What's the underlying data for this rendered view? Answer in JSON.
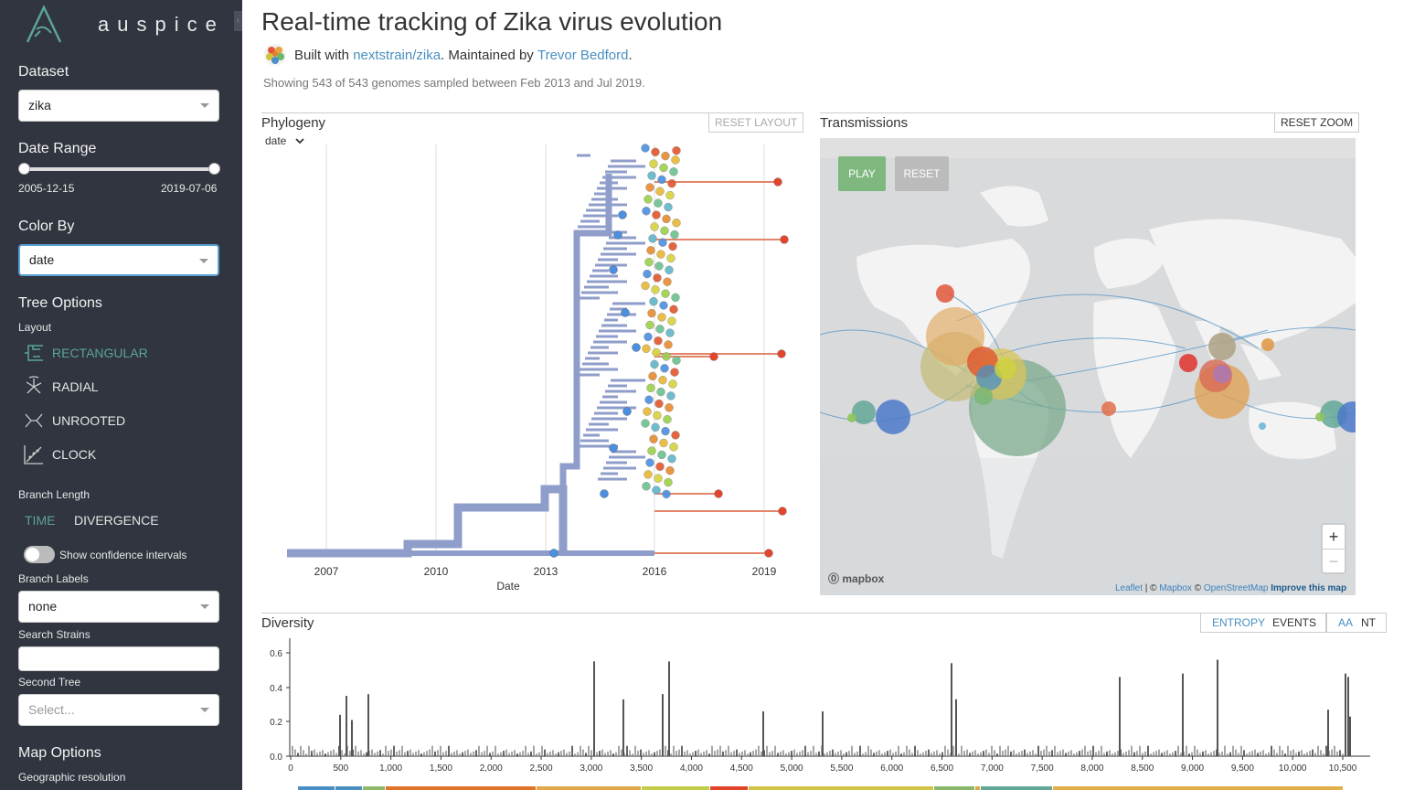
{
  "sidebar": {
    "brand": "auspice",
    "dataset": {
      "heading": "Dataset",
      "value": "zika"
    },
    "date_range": {
      "heading": "Date Range",
      "min": "2005-12-15",
      "max": "2019-07-06"
    },
    "color_by": {
      "heading": "Color By",
      "value": "date"
    },
    "tree_options": {
      "heading": "Tree Options",
      "layout_label": "Layout",
      "layouts": [
        "RECTANGULAR",
        "RADIAL",
        "UNROOTED",
        "CLOCK"
      ],
      "selected_layout": "RECTANGULAR",
      "branch_length_label": "Branch Length",
      "branch_length_options": [
        "TIME",
        "DIVERGENCE"
      ],
      "selected_branch_length": "TIME",
      "confidence_label": "Show confidence intervals",
      "branch_labels_label": "Branch Labels",
      "branch_labels_value": "none",
      "search_label": "Search Strains",
      "search_value": "",
      "second_tree_label": "Second Tree",
      "second_tree_placeholder": "Select..."
    },
    "map_options": {
      "heading": "Map Options",
      "geo_res_label": "Geographic resolution"
    }
  },
  "header": {
    "title": "Real-time tracking of Zika virus evolution",
    "built_prefix": "Built with ",
    "built_link": "nextstrain/zika",
    "maintained_prefix": ". Maintained by ",
    "maintainer": "Trevor Bedford",
    "maintained_suffix": ".",
    "summary": "Showing 543 of 543 genomes sampled between Feb 2013 and Jul 2019."
  },
  "phylogeny": {
    "title": "Phylogeny",
    "reset_label": "RESET LAYOUT",
    "scale_select": "date",
    "x_ticks": [
      "2007",
      "2010",
      "2013",
      "2016",
      "2019"
    ],
    "x_label": "Date"
  },
  "transmissions": {
    "title": "Transmissions",
    "reset_zoom_label": "RESET ZOOM",
    "play_label": "PLAY",
    "reset_label": "RESET",
    "zoom_in": "+",
    "zoom_out": "−",
    "mapbox_label": "mapbox",
    "attrib": {
      "leaflet": "Leaflet",
      "sep": " | © ",
      "mapbox": "Mapbox",
      "c": " © ",
      "osm": "OpenStreetMap",
      "improve": "Improve this map"
    },
    "colors": {
      "play": "#7fb87f",
      "reset": "#bbbbbb",
      "land": "#f4f4f4",
      "water": "#d8dadc"
    }
  },
  "diversity": {
    "title": "Diversity",
    "modes": [
      "ENTROPY",
      "EVENTS"
    ],
    "selected_mode": "ENTROPY",
    "seq_types": [
      "AA",
      "NT"
    ],
    "selected_seq": "AA",
    "y_ticks": [
      "0.6",
      "0.4",
      "0.2",
      "0.0"
    ],
    "x_ticks": [
      "0",
      "500",
      "1,000",
      "1,500",
      "2,000",
      "2,500",
      "3,000",
      "3,500",
      "4,000",
      "4,500",
      "5,000",
      "5,500",
      "6,000",
      "6,500",
      "7,000",
      "7,500",
      "8,000",
      "8,500",
      "9,000",
      "9,500",
      "10,000",
      "10,500"
    ]
  }
}
